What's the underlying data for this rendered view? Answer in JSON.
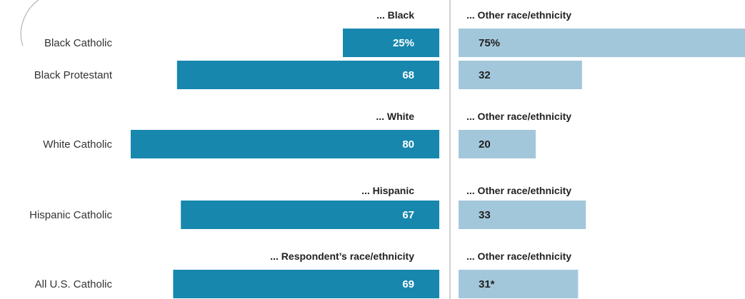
{
  "colors": {
    "left_bar": "#1787ae",
    "right_bar": "#a3c7da",
    "divider": "#cfcfcf",
    "bracket": "#b4b4b4"
  },
  "chart_data": {
    "type": "bar",
    "orientation": "horizontal-diverging",
    "groups": [
      {
        "left_header": "... Black",
        "right_header": "... Other race/ethnicity",
        "rows": [
          {
            "category": "Black Catholic",
            "left": 25,
            "right": 75,
            "left_label": "25%",
            "right_label": "75%"
          },
          {
            "category": "Black Protestant",
            "left": 68,
            "right": 32,
            "left_label": "68",
            "right_label": "32"
          }
        ]
      },
      {
        "left_header": "... White",
        "right_header": "... Other race/ethnicity",
        "rows": [
          {
            "category": "White Catholic",
            "left": 80,
            "right": 20,
            "left_label": "80",
            "right_label": "20"
          }
        ]
      },
      {
        "left_header": "... Hispanic",
        "right_header": "... Other race/ethnicity",
        "rows": [
          {
            "category": "Hispanic Catholic",
            "left": 67,
            "right": 33,
            "left_label": "67",
            "right_label": "33"
          }
        ]
      },
      {
        "left_header": "... Respondent’s race/ethnicity",
        "right_header": "... Other race/ethnicity",
        "rows": [
          {
            "category": "All U.S. Catholic",
            "left": 69,
            "right": 31,
            "left_label": "69",
            "right_label": "31*"
          }
        ]
      }
    ]
  }
}
